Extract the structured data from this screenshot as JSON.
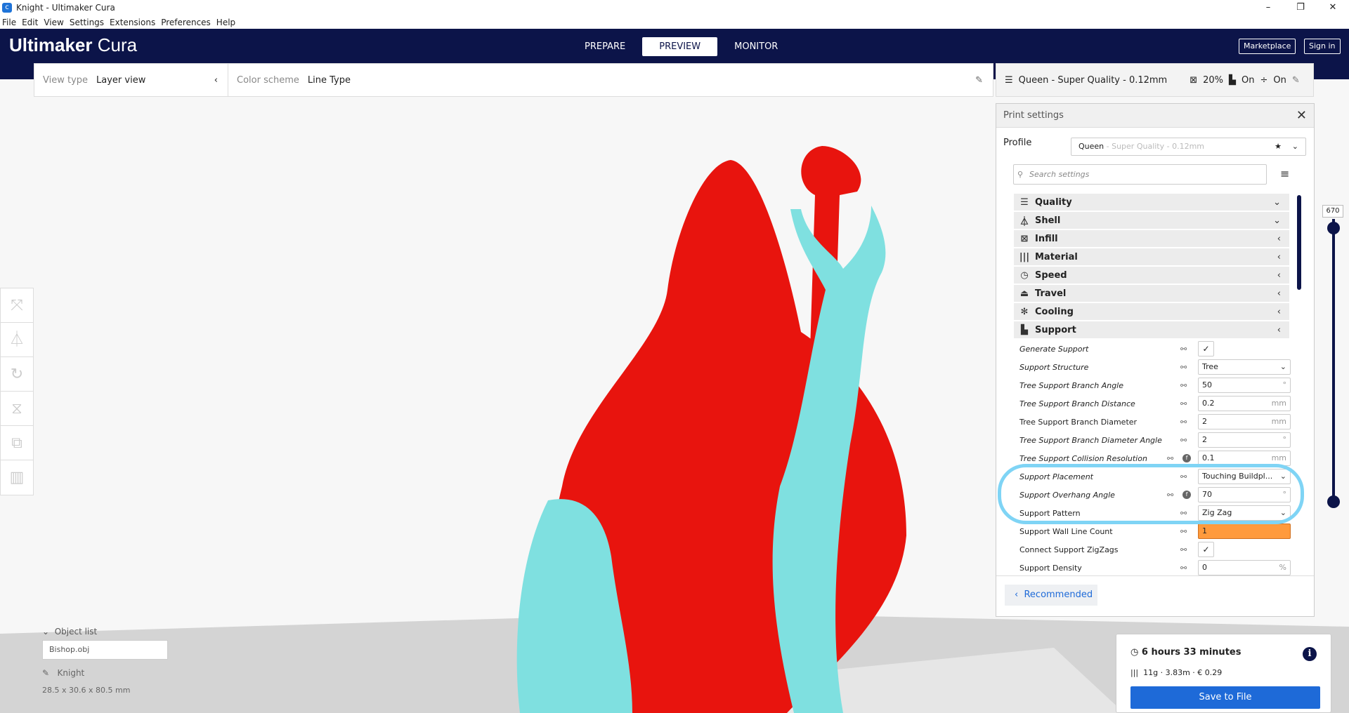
{
  "window": {
    "title": "Knight - Ultimaker Cura",
    "controls": [
      "–",
      "❐",
      "✕"
    ]
  },
  "menu": [
    "File",
    "Edit",
    "View",
    "Settings",
    "Extensions",
    "Preferences",
    "Help"
  ],
  "header": {
    "logo_a": "Ultimaker",
    "logo_b": " Cura",
    "stages": [
      "PREPARE",
      "PREVIEW",
      "MONITOR"
    ],
    "active_stage": "PREVIEW",
    "marketplace": "Marketplace",
    "signin": "Sign in"
  },
  "stagebar": {
    "view_type_label": "View type",
    "view_type": "Layer view",
    "color_scheme_label": "Color scheme",
    "color_scheme": "Line Type"
  },
  "printbar": {
    "profile": "Queen - Super Quality - 0.12mm",
    "infill": "20%",
    "support": "On",
    "adhesion": "On"
  },
  "panel": {
    "title": "Print settings",
    "profile_label": "Profile",
    "profile_name": "Queen",
    "profile_detail": " - Super Quality - 0.12mm",
    "search_placeholder": "Search settings",
    "categories": [
      {
        "label": "Quality",
        "icon": "quality-icon",
        "glyph": "☰",
        "chev": "⌄"
      },
      {
        "label": "Shell",
        "icon": "shell-icon",
        "glyph": "⏃",
        "chev": "⌄"
      },
      {
        "label": "Infill",
        "icon": "infill-icon",
        "glyph": "⊠",
        "chev": "‹"
      },
      {
        "label": "Material",
        "icon": "material-icon",
        "glyph": "|||",
        "chev": "‹"
      },
      {
        "label": "Speed",
        "icon": "speed-icon",
        "glyph": "◷",
        "chev": "‹"
      },
      {
        "label": "Travel",
        "icon": "travel-icon",
        "glyph": "⏏",
        "chev": "‹"
      },
      {
        "label": "Cooling",
        "icon": "cooling-icon",
        "glyph": "✻",
        "chev": "‹"
      },
      {
        "label": "Support",
        "icon": "support-icon",
        "glyph": "▙",
        "chev": "‹"
      }
    ],
    "settings": [
      {
        "label": "Generate Support",
        "italic": true,
        "type": "check",
        "value": "✓"
      },
      {
        "label": "Support Structure",
        "italic": true,
        "type": "select",
        "value": "Tree"
      },
      {
        "label": "Tree Support Branch Angle",
        "italic": true,
        "type": "number",
        "value": "50",
        "unit": "°"
      },
      {
        "label": "Tree Support Branch Distance",
        "italic": true,
        "type": "number",
        "value": "0.2",
        "unit": "mm"
      },
      {
        "label": "Tree Support Branch Diameter",
        "italic": false,
        "type": "number",
        "value": "2",
        "unit": "mm"
      },
      {
        "label": "Tree Support Branch Diameter Angle",
        "italic": true,
        "type": "number",
        "value": "2",
        "unit": "°"
      },
      {
        "label": "Tree Support Collision Resolution",
        "italic": true,
        "type": "number",
        "value": "0.1",
        "unit": "mm",
        "fx": true
      },
      {
        "label": "Support Placement",
        "italic": true,
        "type": "select",
        "value": "Touching Buildpl..."
      },
      {
        "label": "Support Overhang Angle",
        "italic": true,
        "type": "number",
        "value": "70",
        "unit": "°",
        "fx": true
      },
      {
        "label": "Support Pattern",
        "italic": false,
        "type": "select",
        "value": "Zig Zag"
      },
      {
        "label": "Support Wall Line Count",
        "italic": false,
        "type": "orange",
        "value": "1"
      },
      {
        "label": "Connect Support ZigZags",
        "italic": false,
        "type": "check",
        "value": "✓"
      },
      {
        "label": "Support Density",
        "italic": false,
        "type": "number",
        "value": "0",
        "unit": "%"
      }
    ],
    "recommended": "Recommended"
  },
  "layer_slider": {
    "value": "670"
  },
  "objects": {
    "header": "Object list",
    "items": [
      "Bishop.obj"
    ],
    "selected_name": "Knight",
    "dimensions": "28.5 x 30.6 x 80.5 mm"
  },
  "action": {
    "time": "6 hours 33 minutes",
    "material": "11g · 3.83m · € 0.29",
    "save": "Save to File"
  },
  "colors": {
    "header": "#0c1449",
    "accent": "#1e6ad8",
    "model": "#e8140e",
    "support": "#7fe0e0",
    "highlight": "#7fd4f5",
    "warning": "#ff9a3c"
  }
}
